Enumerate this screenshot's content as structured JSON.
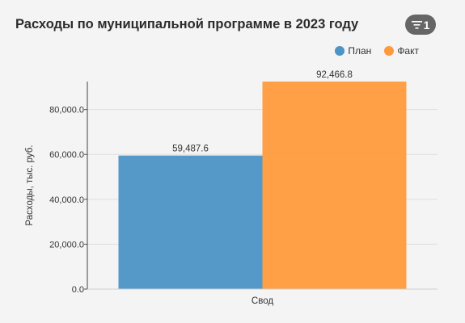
{
  "chart_data": {
    "type": "bar",
    "title": "Расходы по муниципальной программе в 2023 году",
    "categories": [
      "Свод"
    ],
    "series": [
      {
        "name": "План",
        "values": [
          59487.6
        ],
        "value_labels": [
          "59,487.6"
        ],
        "color": "#4c93c6"
      },
      {
        "name": "Факт",
        "values": [
          92466.8
        ],
        "value_labels": [
          "92,466.8"
        ],
        "color": "#ff9a3c"
      }
    ],
    "ylabel": "Расходы, тыс. руб.",
    "xlabel": "",
    "ylim": [
      0,
      92466.8
    ],
    "yticks": [
      0,
      20000,
      40000,
      60000,
      80000
    ],
    "ytick_labels": [
      "0.0",
      "20,000.0",
      "40,000.0",
      "60,000.0",
      "80,000.0"
    ],
    "grid": true,
    "legend_position": "top-right"
  },
  "filter": {
    "count": "1",
    "icon": "filter-icon"
  }
}
